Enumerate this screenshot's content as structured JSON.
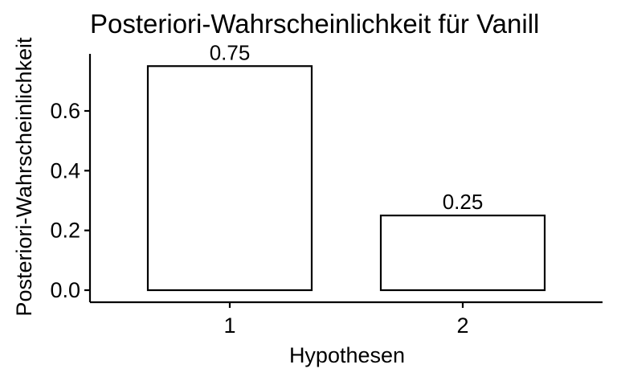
{
  "chart_data": {
    "type": "bar",
    "title": "Posteriori-Wahrscheinlichkeit für Vanill",
    "xlabel": "Hypothesen",
    "ylabel": "Posteriori-Wahrscheinlichkeit",
    "categories": [
      "1",
      "2"
    ],
    "values": [
      0.75,
      0.25
    ],
    "data_labels": [
      "0.75",
      "0.25"
    ],
    "ylim": [
      0,
      0.75
    ],
    "yticks": [
      0.0,
      0.2,
      0.4,
      0.6
    ],
    "ytick_labels": [
      "0.0",
      "0.2",
      "0.4",
      "0.6"
    ],
    "grid": false,
    "legend": "none",
    "bar_fill": "#ffffff",
    "bar_stroke": "#000000"
  }
}
